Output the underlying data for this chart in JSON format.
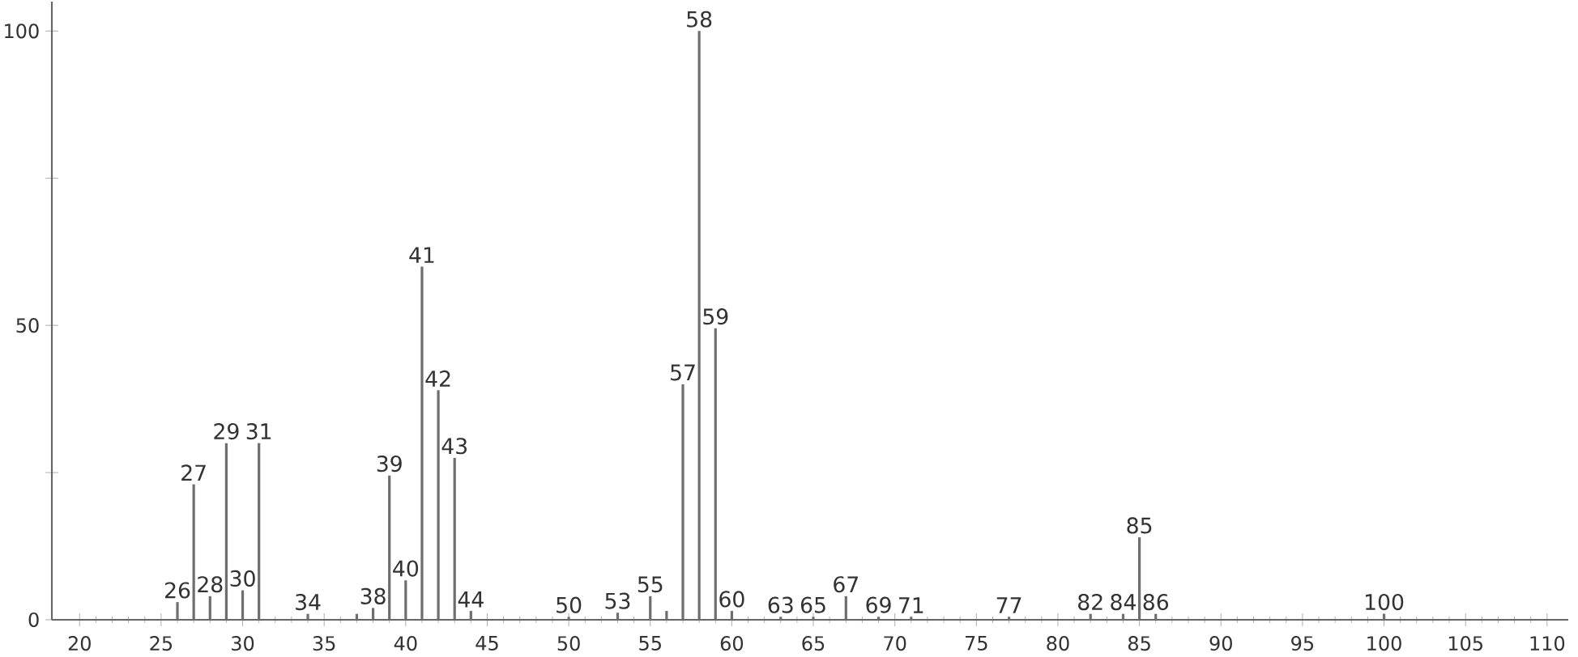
{
  "chart_data": {
    "type": "bar",
    "color": "#6e6e6e",
    "x": [
      26,
      27,
      28,
      29,
      30,
      31,
      34,
      37,
      38,
      39,
      40,
      41,
      42,
      43,
      44,
      50,
      53,
      55,
      56,
      57,
      58,
      59,
      60,
      63,
      65,
      67,
      69,
      71,
      77,
      82,
      84,
      85,
      86,
      100
    ],
    "values": [
      3,
      23,
      4,
      30,
      5,
      30,
      1,
      1,
      2,
      24.5,
      6.7,
      60,
      39,
      27.5,
      1.5,
      0.5,
      1.2,
      4,
      1.5,
      40,
      100,
      49.5,
      1.5,
      0.5,
      0.5,
      4,
      0.5,
      0.5,
      0.5,
      1,
      1,
      14,
      1,
      1
    ],
    "xlim": [
      18.3,
      111.3
    ],
    "ylim": [
      0,
      105
    ],
    "xticks": [
      20,
      25,
      30,
      35,
      40,
      45,
      50,
      55,
      60,
      65,
      70,
      75,
      80,
      85,
      90,
      95,
      100,
      105,
      110
    ],
    "yticks": [
      0,
      {
        "value": 25,
        "label": null
      },
      50,
      {
        "value": 75,
        "label": null
      },
      100
    ],
    "grid": false,
    "annotations": [
      {
        "text": "26",
        "x": 26,
        "y": 3
      },
      {
        "text": "27",
        "x": 27,
        "y": 23
      },
      {
        "text": "28",
        "x": 28,
        "y": 4
      },
      {
        "text": "29",
        "x": 29,
        "y": 30
      },
      {
        "text": "30",
        "x": 30,
        "y": 5
      },
      {
        "text": "31",
        "x": 31,
        "y": 30
      },
      {
        "text": "34",
        "x": 34,
        "y": 1
      },
      {
        "text": "38",
        "x": 38,
        "y": 2
      },
      {
        "text": "39",
        "x": 39,
        "y": 24.5
      },
      {
        "text": "40",
        "x": 40,
        "y": 6.7
      },
      {
        "text": "41",
        "x": 41,
        "y": 60
      },
      {
        "text": "42",
        "x": 42,
        "y": 39
      },
      {
        "text": "43",
        "x": 43,
        "y": 27.5
      },
      {
        "text": "44",
        "x": 44,
        "y": 1.5
      },
      {
        "text": "50",
        "x": 50,
        "y": 0.5
      },
      {
        "text": "53",
        "x": 53,
        "y": 1.2
      },
      {
        "text": "55",
        "x": 55,
        "y": 4
      },
      {
        "text": "57",
        "x": 57,
        "y": 40
      },
      {
        "text": "58",
        "x": 58,
        "y": 100
      },
      {
        "text": "59",
        "x": 59,
        "y": 49.5
      },
      {
        "text": "60",
        "x": 60,
        "y": 1.5
      },
      {
        "text": "63",
        "x": 63,
        "y": 0.5
      },
      {
        "text": "65",
        "x": 65,
        "y": 0.5
      },
      {
        "text": "67",
        "x": 67,
        "y": 4
      },
      {
        "text": "69",
        "x": 69,
        "y": 0.5
      },
      {
        "text": "71",
        "x": 71,
        "y": 0.5
      },
      {
        "text": "77",
        "x": 77,
        "y": 0.5
      },
      {
        "text": "82",
        "x": 82,
        "y": 1
      },
      {
        "text": "84",
        "x": 84,
        "y": 1
      },
      {
        "text": "85",
        "x": 85,
        "y": 14
      },
      {
        "text": "86",
        "x": 86,
        "y": 1
      },
      {
        "text": "100",
        "x": 100,
        "y": 1
      }
    ]
  }
}
